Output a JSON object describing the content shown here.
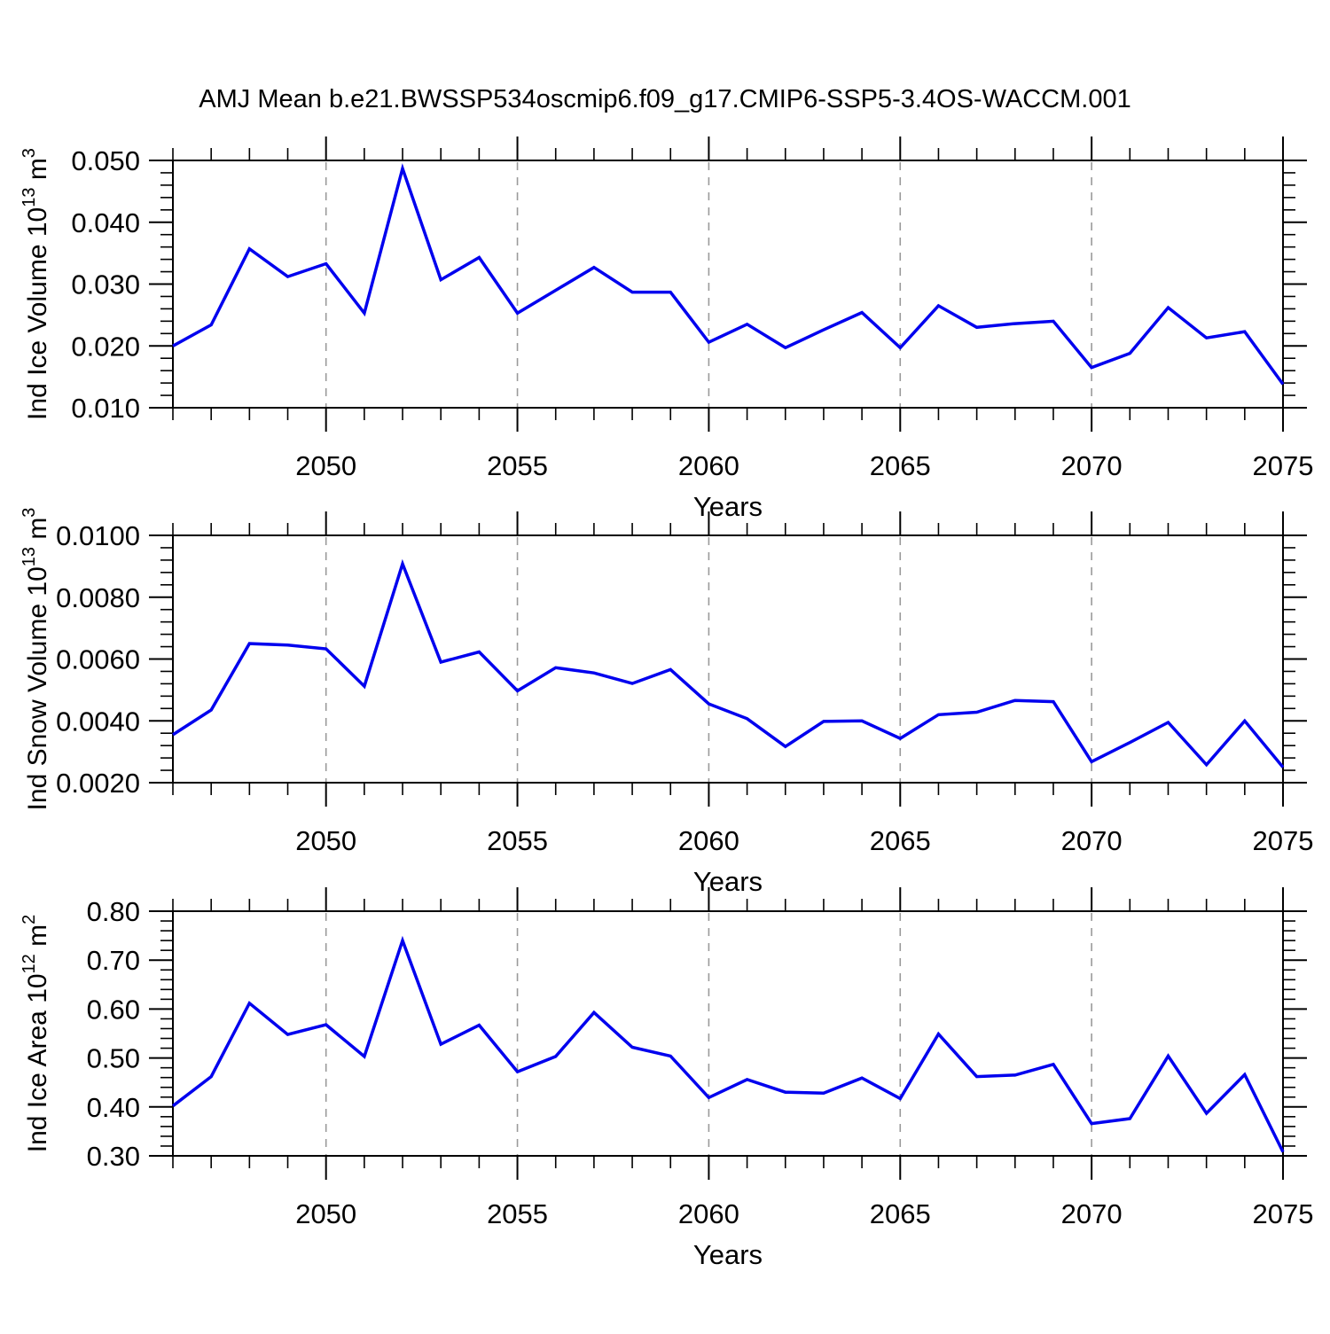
{
  "page_title": "AMJ Mean b.e21.BWSSP534oscmip6.f09_g17.CMIP6-SSP5-3.4OS-WACCM.001",
  "colors": {
    "line": "#0000ee",
    "axis": "#000000",
    "gridline": "#9a9a9a",
    "background": "#ffffff"
  },
  "xaxis": {
    "label": "Years",
    "min": 2046,
    "max": 2075,
    "major_ticks": [
      2050,
      2055,
      2060,
      2065,
      2070,
      2075
    ],
    "minor_step": 1,
    "gridlines": [
      2050,
      2055,
      2060,
      2065,
      2070
    ]
  },
  "chart_data": [
    {
      "type": "line",
      "name": "ice-volume-chart",
      "ylabel": "Ind Ice Volume 10^13 m^3",
      "ylabel_parts": [
        {
          "text": "Ind Ice Volume 10"
        },
        {
          "text": "13",
          "sup": true
        },
        {
          "text": " m"
        },
        {
          "text": "3",
          "sup": true
        }
      ],
      "xlabel": "Years",
      "ylim": [
        0.01,
        0.05
      ],
      "ytick_major": [
        0.01,
        0.02,
        0.03,
        0.04,
        0.05
      ],
      "ytick_minor_step": 0.002,
      "ytick_decimals": 3,
      "grid": "x-dashed",
      "legend": "none",
      "x": [
        2046,
        2047,
        2048,
        2049,
        2050,
        2051,
        2052,
        2053,
        2054,
        2055,
        2056,
        2057,
        2058,
        2059,
        2060,
        2061,
        2062,
        2063,
        2064,
        2065,
        2066,
        2067,
        2068,
        2069,
        2070,
        2071,
        2072,
        2073,
        2074,
        2075
      ],
      "values": [
        0.02,
        0.0234,
        0.0357,
        0.0312,
        0.0333,
        0.0253,
        0.0487,
        0.0307,
        0.0343,
        0.0253,
        0.029,
        0.0327,
        0.0287,
        0.0287,
        0.0206,
        0.0235,
        0.0197,
        0.0226,
        0.0254,
        0.0197,
        0.0265,
        0.023,
        0.0236,
        0.024,
        0.0165,
        0.0188,
        0.0262,
        0.0213,
        0.0223,
        0.0138
      ]
    },
    {
      "type": "line",
      "name": "snow-volume-chart",
      "ylabel": "Ind Snow Volume 10^13 m^3",
      "ylabel_parts": [
        {
          "text": "Ind Snow Volume 10"
        },
        {
          "text": "13",
          "sup": true
        },
        {
          "text": " m"
        },
        {
          "text": "3",
          "sup": true
        }
      ],
      "xlabel": "Years",
      "ylim": [
        0.002,
        0.01
      ],
      "ytick_major": [
        0.002,
        0.004,
        0.006,
        0.008,
        0.01
      ],
      "ytick_minor_step": 0.0004,
      "ytick_decimals": 4,
      "grid": "x-dashed",
      "legend": "none",
      "x": [
        2046,
        2047,
        2048,
        2049,
        2050,
        2051,
        2052,
        2053,
        2054,
        2055,
        2056,
        2057,
        2058,
        2059,
        2060,
        2061,
        2062,
        2063,
        2064,
        2065,
        2066,
        2067,
        2068,
        2069,
        2070,
        2071,
        2072,
        2073,
        2074,
        2075
      ],
      "values": [
        0.00355,
        0.00435,
        0.0065,
        0.00645,
        0.00633,
        0.00512,
        0.00908,
        0.0059,
        0.00623,
        0.00497,
        0.00572,
        0.00555,
        0.00521,
        0.00566,
        0.00455,
        0.00407,
        0.00317,
        0.00398,
        0.004,
        0.00343,
        0.0042,
        0.00428,
        0.00466,
        0.00462,
        0.00268,
        0.0033,
        0.00395,
        0.00258,
        0.004,
        0.0025
      ]
    },
    {
      "type": "line",
      "name": "ice-area-chart",
      "ylabel": "Ind Ice Area 10^12 m^2",
      "ylabel_parts": [
        {
          "text": "Ind Ice Area 10"
        },
        {
          "text": "12",
          "sup": true
        },
        {
          "text": " m"
        },
        {
          "text": "2",
          "sup": true
        }
      ],
      "xlabel": "Years",
      "ylim": [
        0.3,
        0.8
      ],
      "ytick_major": [
        0.3,
        0.4,
        0.5,
        0.6,
        0.7,
        0.8
      ],
      "ytick_minor_step": 0.02,
      "ytick_decimals": 2,
      "grid": "x-dashed",
      "legend": "none",
      "x": [
        2046,
        2047,
        2048,
        2049,
        2050,
        2051,
        2052,
        2053,
        2054,
        2055,
        2056,
        2057,
        2058,
        2059,
        2060,
        2061,
        2062,
        2063,
        2064,
        2065,
        2066,
        2067,
        2068,
        2069,
        2070,
        2071,
        2072,
        2073,
        2074,
        2075
      ],
      "values": [
        0.402,
        0.462,
        0.612,
        0.548,
        0.568,
        0.503,
        0.74,
        0.528,
        0.567,
        0.472,
        0.503,
        0.593,
        0.522,
        0.504,
        0.419,
        0.456,
        0.43,
        0.428,
        0.459,
        0.417,
        0.549,
        0.462,
        0.465,
        0.487,
        0.366,
        0.376,
        0.504,
        0.387,
        0.466,
        0.308
      ]
    }
  ]
}
